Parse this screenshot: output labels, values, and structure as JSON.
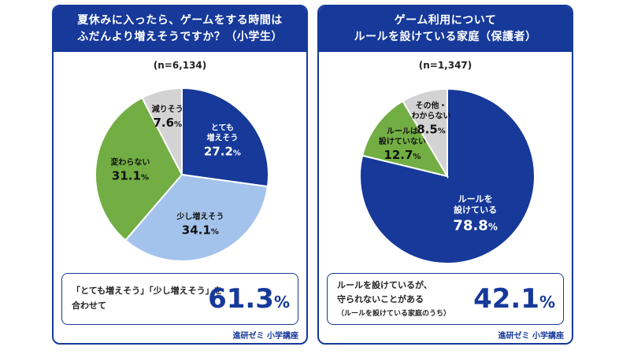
{
  "chart_data": [
    {
      "type": "pie",
      "title_lines": [
        "夏休みに入ったら、ゲームをする時間は",
        "ふだんより増えそうですか？（小学生）"
      ],
      "sample": "(n=6,134)",
      "slices": [
        {
          "label": [
            "とても",
            "増えそう"
          ],
          "value": 27.2,
          "value_text": "27.2",
          "color": "#16399a",
          "text_color": "#ffffff"
        },
        {
          "label": [
            "少し増えそう"
          ],
          "value": 34.1,
          "value_text": "34.1",
          "color": "#a4c3ec",
          "text_color": "#111111"
        },
        {
          "label": [
            "変わらない"
          ],
          "value": 31.1,
          "value_text": "31.1",
          "color": "#72ae44",
          "text_color": "#111111"
        },
        {
          "label": [
            "減りそう"
          ],
          "value": 7.6,
          "value_text": "7.6",
          "color": "#d3d3d3",
          "text_color": "#111111"
        }
      ],
      "unit": "%",
      "summary": {
        "lines": [
          "「とても増えそう」「少し増えそう」を",
          "合わせて"
        ],
        "value": "61.3",
        "unit": "%"
      },
      "brand": "進研ゼミ 小学講座"
    },
    {
      "type": "pie",
      "title_lines": [
        "ゲーム利用について",
        "ルールを設けている家庭（保護者）"
      ],
      "sample": "(n=1,347)",
      "slices": [
        {
          "label": [
            "ルールを",
            "設けている"
          ],
          "value": 78.8,
          "value_text": "78.8",
          "color": "#16399a",
          "text_color": "#ffffff"
        },
        {
          "label": [
            "ルールは",
            "設けていない"
          ],
          "value": 12.7,
          "value_text": "12.7",
          "color": "#72ae44",
          "text_color": "#111111"
        },
        {
          "label": [
            "その他・",
            "わからない"
          ],
          "value": 8.5,
          "value_text": "8.5",
          "color": "#d3d3d3",
          "text_color": "#111111"
        }
      ],
      "unit": "%",
      "summary": {
        "lines": [
          "ルールを設けているが、",
          "守られないことがある",
          "（ルールを設けている家庭のうち）"
        ],
        "value": "42.1",
        "unit": "%"
      },
      "brand": "進研ゼミ 小学講座"
    }
  ]
}
